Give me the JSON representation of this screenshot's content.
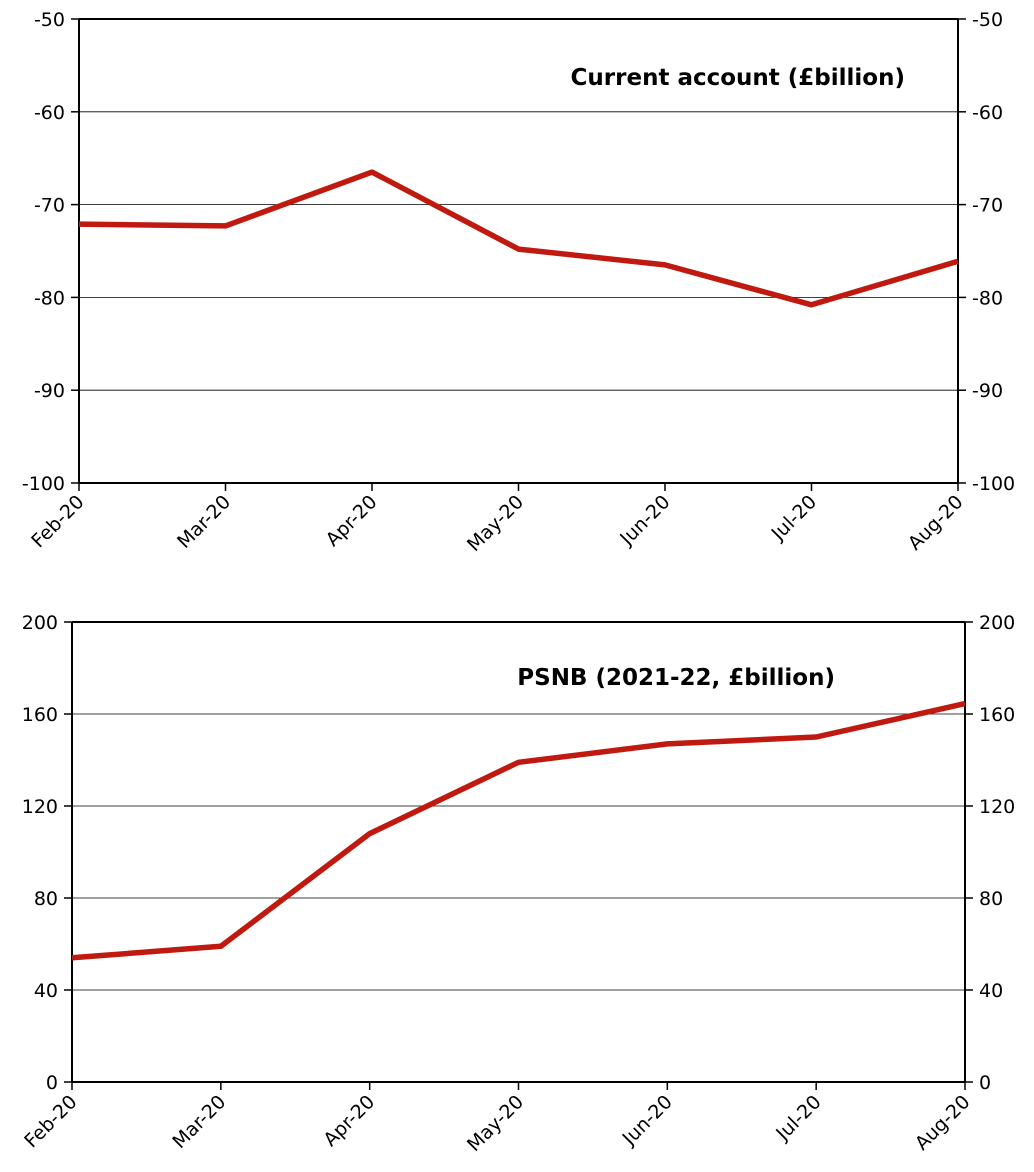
{
  "chart_data": [
    {
      "type": "line",
      "title": "Current account (£billion)",
      "xlabel": "",
      "ylabel": "",
      "categories": [
        "Feb-20",
        "Mar-20",
        "Apr-20",
        "May-20",
        "Jun-20",
        "Jul-20",
        "Aug-20"
      ],
      "series": [
        {
          "values": [
            -72.1,
            -72.3,
            -66.5,
            -74.8,
            -76.5,
            -80.8,
            -76.1
          ]
        }
      ],
      "ylim": [
        -100,
        -50
      ],
      "yticks": [
        -50,
        -60,
        -70,
        -80,
        -90,
        -100
      ],
      "ytick_labels": [
        "-50",
        "-60",
        "-70",
        "-80",
        "-90",
        "-100"
      ],
      "secondary_y_axis": true,
      "grid": "horizontal",
      "legend": "none",
      "line_color": "#c0190f"
    },
    {
      "type": "line",
      "title": "PSNB (2021-22, £billion)",
      "xlabel": "",
      "ylabel": "",
      "categories": [
        "Feb-20",
        "Mar-20",
        "Apr-20",
        "May-20",
        "Jun-20",
        "Jul-20",
        "Aug-20"
      ],
      "series": [
        {
          "values": [
            54,
            59,
            108,
            139,
            147,
            150,
            164.5
          ]
        }
      ],
      "ylim": [
        0,
        200
      ],
      "yticks": [
        200,
        160,
        120,
        80,
        40,
        0
      ],
      "ytick_labels": [
        "200",
        "160",
        "120",
        "80",
        "40",
        "0"
      ],
      "secondary_y_axis": true,
      "grid": "horizontal",
      "legend": "none",
      "line_color": "#c0190f"
    }
  ]
}
